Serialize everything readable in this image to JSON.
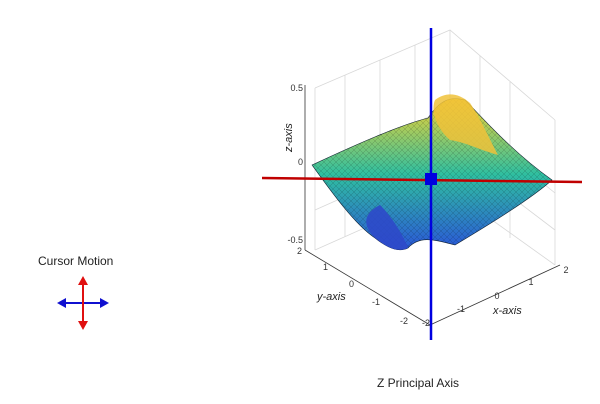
{
  "left_panel": {
    "cursor_label": "Cursor Motion",
    "icon": "cursor-motion-arrows-icon",
    "colors": {
      "horizontal": "#1010d0",
      "vertical": "#e01010"
    }
  },
  "caption": "Z Principal Axis",
  "chart_data": {
    "type": "surface",
    "title": "",
    "axes": {
      "z": {
        "label": "z-axis",
        "ticks": [
          "0.5",
          "0",
          "-0.5"
        ]
      },
      "y": {
        "label": "y-axis",
        "ticks": [
          "2",
          "1",
          "0",
          "-1",
          "-2"
        ]
      },
      "x": {
        "label": "x-axis",
        "ticks": [
          "-2",
          "-1",
          "0",
          "1",
          "2"
        ]
      }
    },
    "xlim": [
      -2,
      2
    ],
    "ylim": [
      -2,
      2
    ],
    "zlim": [
      -0.5,
      0.5
    ],
    "grid": true,
    "colors": {
      "principal_axis_blue": "#0000e0",
      "principal_axis_red": "#c00000",
      "surface_low": "#3a4fd6",
      "surface_mid": "#2fbfa0",
      "surface_high": "#f5d230"
    }
  }
}
